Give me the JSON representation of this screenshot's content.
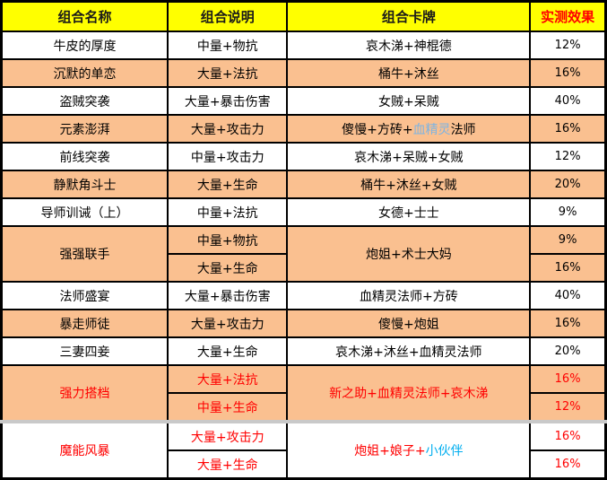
{
  "table": {
    "headers": [
      {
        "label": "组合名称",
        "fg": "#1A1A1A"
      },
      {
        "label": "组合说明",
        "fg": "#1A1A1A"
      },
      {
        "label": "组合卡牌",
        "fg": "#1A1A1A"
      },
      {
        "label": "实测效果",
        "fg": "#FF0000"
      }
    ],
    "rows": [
      {
        "name": "牛皮的厚度",
        "bg": "#FFFFFF",
        "fg": "#000000",
        "subs": [
          {
            "d": "中量+物抗",
            "e": "12%"
          }
        ],
        "card": [
          {
            "t": "哀木涕+神棍德"
          }
        ]
      },
      {
        "name": "沉默的单恋",
        "bg": "#FAC090",
        "fg": "#000000",
        "subs": [
          {
            "d": "大量+法抗",
            "e": "16%"
          }
        ],
        "card": [
          {
            "t": "桶牛+沐丝"
          }
        ]
      },
      {
        "name": "盗贼突袭",
        "bg": "#FFFFFF",
        "fg": "#000000",
        "subs": [
          {
            "d": "大量+暴击伤害",
            "e": "40%"
          }
        ],
        "card": [
          {
            "t": "女贼+呆贼"
          }
        ]
      },
      {
        "name": "元素澎湃",
        "bg": "#FAC090",
        "fg": "#000000",
        "subs": [
          {
            "d": "大量+攻击力",
            "e": "16%"
          }
        ],
        "card": [
          {
            "t": "傻慢+方砖+"
          },
          {
            "t": "血精灵",
            "c": "text_blue"
          },
          {
            "t": "法师"
          }
        ]
      },
      {
        "name": "前线突袭",
        "bg": "#FFFFFF",
        "fg": "#000000",
        "subs": [
          {
            "d": "中量+攻击力",
            "e": "12%"
          }
        ],
        "card": [
          {
            "t": "哀木涕+呆贼+女贼"
          }
        ]
      },
      {
        "name": "静默角斗士",
        "bg": "#FAC090",
        "fg": "#000000",
        "subs": [
          {
            "d": "大量+生命",
            "e": "20%"
          }
        ],
        "card": [
          {
            "t": "桶牛+沐丝+女贼"
          }
        ]
      },
      {
        "name": "导师训诫（上）",
        "bg": "#FFFFFF",
        "fg": "#000000",
        "subs": [
          {
            "d": "中量+法抗",
            "e": "9%"
          }
        ],
        "card": [
          {
            "t": "女德+士士"
          }
        ]
      },
      {
        "name": "强强联手",
        "bg": "#FAC090",
        "fg": "#000000",
        "subs": [
          {
            "d": "中量+物抗",
            "e": "9%"
          },
          {
            "d": "大量+生命",
            "e": "16%"
          }
        ],
        "card": [
          {
            "t": "炮姐+术士大妈"
          }
        ]
      },
      {
        "name": "法师盛宴",
        "bg": "#FFFFFF",
        "fg": "#000000",
        "subs": [
          {
            "d": "大量+暴击伤害",
            "e": "40%"
          }
        ],
        "card": [
          {
            "t": "血精灵法师+方砖"
          }
        ]
      },
      {
        "name": "暴走师徒",
        "bg": "#FAC090",
        "fg": "#000000",
        "subs": [
          {
            "d": "大量+攻击力",
            "e": "16%"
          }
        ],
        "card": [
          {
            "t": "傻慢+炮姐"
          }
        ]
      },
      {
        "name": "三妻四妾",
        "bg": "#FFFFFF",
        "fg": "#000000",
        "subs": [
          {
            "d": "大量+生命",
            "e": "20%"
          }
        ],
        "card": [
          {
            "t": "哀木涕+沐丝+血精灵法师"
          }
        ]
      },
      {
        "name": "强力搭档",
        "bg": "#FAC090",
        "fg": "#FF0000",
        "subs": [
          {
            "d": "大量+法抗",
            "e": "16%"
          },
          {
            "d": "中量+生命",
            "e": "12%"
          }
        ],
        "card": [
          {
            "t": "新之助+血精灵法师+哀木涕"
          }
        ]
      },
      {
        "name": "魔能风暴",
        "bg": "#FFFFFF",
        "fg": "#FF0000",
        "grayTop": true,
        "subs": [
          {
            "d": "大量+攻击力",
            "e": "16%"
          },
          {
            "d": "大量+生命",
            "e": "16%"
          }
        ],
        "card": [
          {
            "t": "炮姐+娘子+"
          },
          {
            "t": "小伙伴",
            "c": "text_cyan"
          }
        ]
      }
    ]
  },
  "colors": {
    "header_bg": "#FFFF00",
    "row_orange": "#FAC090",
    "row_white": "#FFFFFF",
    "text_black": "#000000",
    "text_red": "#FF0000",
    "text_blue": "#7EB4E2",
    "text_cyan": "#00AEEF",
    "border_black": "#000000",
    "divider_gray": "#C9C9C9"
  }
}
